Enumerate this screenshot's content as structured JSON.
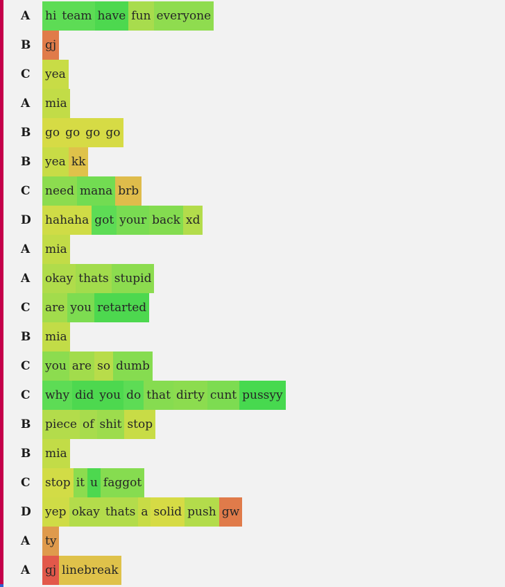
{
  "rows": [
    {
      "speaker": "A",
      "tokens": [
        {
          "text": "hi",
          "color": "#5ddc55"
        },
        {
          "text": "team",
          "color": "#5ddc55"
        },
        {
          "text": "have",
          "color": "#4dd84f"
        },
        {
          "text": "fun",
          "color": "#a8dc4d"
        },
        {
          "text": "everyone",
          "color": "#8fdc4f"
        }
      ]
    },
    {
      "speaker": "B",
      "tokens": [
        {
          "text": "gj",
          "color": "#e07b4a"
        }
      ]
    },
    {
      "speaker": "C",
      "tokens": [
        {
          "text": "yea",
          "color": "#c8dc46"
        }
      ]
    },
    {
      "speaker": "A",
      "tokens": [
        {
          "text": "mia",
          "color": "#c2dc47"
        }
      ]
    },
    {
      "speaker": "B",
      "tokens": [
        {
          "text": "go",
          "color": "#d6db45"
        },
        {
          "text": "go",
          "color": "#d6db45"
        },
        {
          "text": "go",
          "color": "#d6db45"
        },
        {
          "text": "go",
          "color": "#d6db45"
        }
      ]
    },
    {
      "speaker": "B",
      "tokens": [
        {
          "text": "yea",
          "color": "#c8dc46"
        },
        {
          "text": "kk",
          "color": "#dfc24a"
        }
      ]
    },
    {
      "speaker": "C",
      "tokens": [
        {
          "text": "need",
          "color": "#8cdc4f"
        },
        {
          "text": "mana",
          "color": "#72dc52"
        },
        {
          "text": "brb",
          "color": "#dfbc4b"
        }
      ]
    },
    {
      "speaker": "D",
      "tokens": [
        {
          "text": "hahaha",
          "color": "#cfdc46"
        },
        {
          "text": "got",
          "color": "#5ddc55"
        },
        {
          "text": "your",
          "color": "#79dc52"
        },
        {
          "text": "back",
          "color": "#84dc50"
        },
        {
          "text": "xd",
          "color": "#b3dc4b"
        }
      ]
    },
    {
      "speaker": "A",
      "tokens": [
        {
          "text": "mia",
          "color": "#c2dc47"
        }
      ]
    },
    {
      "speaker": "A",
      "tokens": [
        {
          "text": "okay",
          "color": "#b0dc4b"
        },
        {
          "text": "thats",
          "color": "#a2dc4c"
        },
        {
          "text": "stupid",
          "color": "#8cdc4f"
        }
      ]
    },
    {
      "speaker": "C",
      "tokens": [
        {
          "text": "are",
          "color": "#a2dc4c"
        },
        {
          "text": "you",
          "color": "#7ddc51"
        },
        {
          "text": "retarted",
          "color": "#4dd84f"
        }
      ]
    },
    {
      "speaker": "B",
      "tokens": [
        {
          "text": "mia",
          "color": "#c2dc47"
        }
      ]
    },
    {
      "speaker": "C",
      "tokens": [
        {
          "text": "you",
          "color": "#8cdc4f"
        },
        {
          "text": "are",
          "color": "#a2dc4c"
        },
        {
          "text": "so",
          "color": "#b8dc4a"
        },
        {
          "text": "dumb",
          "color": "#86dc50"
        }
      ]
    },
    {
      "speaker": "C",
      "tokens": [
        {
          "text": "why",
          "color": "#5ddc55"
        },
        {
          "text": "did",
          "color": "#4dd84f"
        },
        {
          "text": "you",
          "color": "#4dd84f"
        },
        {
          "text": "do",
          "color": "#5ddc55"
        },
        {
          "text": "that",
          "color": "#86dc50"
        },
        {
          "text": "dirty",
          "color": "#8cdc4f"
        },
        {
          "text": "cunt",
          "color": "#7ddc51"
        },
        {
          "text": "pussyy",
          "color": "#47d94f"
        }
      ]
    },
    {
      "speaker": "B",
      "tokens": [
        {
          "text": "piece",
          "color": "#b3dc4b"
        },
        {
          "text": "of",
          "color": "#a8dc4d"
        },
        {
          "text": "shit",
          "color": "#9ddc4d"
        },
        {
          "text": "stop",
          "color": "#c8dc46"
        }
      ]
    },
    {
      "speaker": "B",
      "tokens": [
        {
          "text": "mia",
          "color": "#c2dc47"
        }
      ]
    },
    {
      "speaker": "C",
      "tokens": [
        {
          "text": "stop",
          "color": "#d2dc46"
        },
        {
          "text": "it",
          "color": "#8cdc4f"
        },
        {
          "text": "u",
          "color": "#4dd84f"
        },
        {
          "text": "faggot",
          "color": "#86dc50"
        }
      ]
    },
    {
      "speaker": "D",
      "tokens": [
        {
          "text": "yep",
          "color": "#cfdc46"
        },
        {
          "text": "okay",
          "color": "#b3dc4b"
        },
        {
          "text": "thats",
          "color": "#b3dc4b"
        },
        {
          "text": "a",
          "color": "#c8dc46"
        },
        {
          "text": "solid",
          "color": "#d6db45"
        },
        {
          "text": "push",
          "color": "#b3dc4b"
        },
        {
          "text": "gw",
          "color": "#e07b4a"
        }
      ]
    },
    {
      "speaker": "A",
      "tokens": [
        {
          "text": "ty",
          "color": "#df9a4c"
        }
      ]
    },
    {
      "speaker": "A",
      "tokens": [
        {
          "text": "gj",
          "color": "#e2584a"
        },
        {
          "text": "linebreak",
          "color": "#dfc24a"
        }
      ]
    }
  ]
}
